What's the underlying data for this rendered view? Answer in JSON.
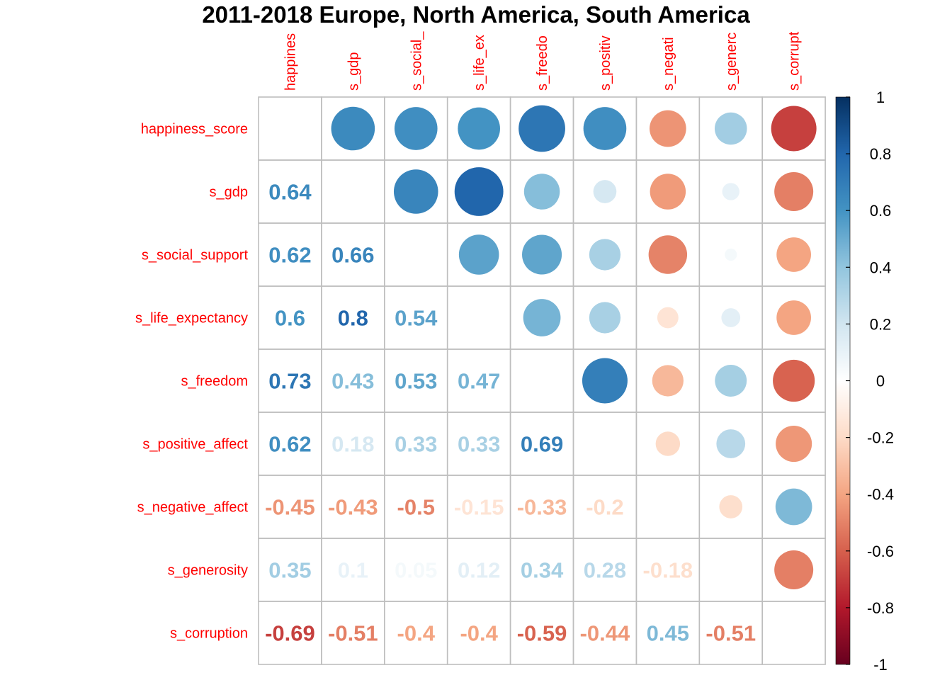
{
  "chart_data": {
    "type": "heatmap",
    "title": "2011-2018 Europe, North America, South America",
    "column_labels": [
      "happiness_score",
      "s_gdp",
      "s_social_support",
      "s_life_expectancy",
      "s_freedom",
      "s_positive_affect",
      "s_negative_affect",
      "s_generosity",
      "s_corruption"
    ],
    "row_labels": [
      "happiness_score",
      "s_gdp",
      "s_social_support",
      "s_life_expectancy",
      "s_freedom",
      "s_positive_affect",
      "s_negative_affect",
      "s_generosity",
      "s_corruption"
    ],
    "column_labels_shown": [
      "happines",
      "s_gdp",
      "s_social_",
      "s_life_ex",
      "s_freedo",
      "s_positiv",
      "s_negati",
      "s_generc",
      "s_corrupt"
    ],
    "matrix": [
      [
        1,
        0.64,
        0.62,
        0.6,
        0.73,
        0.62,
        -0.45,
        0.35,
        -0.69
      ],
      [
        0.64,
        1,
        0.66,
        0.8,
        0.43,
        0.18,
        -0.43,
        0.1,
        -0.51
      ],
      [
        0.62,
        0.66,
        1,
        0.54,
        0.53,
        0.33,
        -0.5,
        0.05,
        -0.4
      ],
      [
        0.6,
        0.8,
        0.54,
        1,
        0.47,
        0.33,
        -0.15,
        0.12,
        -0.4
      ],
      [
        0.73,
        0.43,
        0.53,
        0.47,
        1,
        0.69,
        -0.33,
        0.34,
        -0.59
      ],
      [
        0.62,
        0.18,
        0.33,
        0.33,
        0.69,
        1,
        -0.2,
        0.28,
        -0.44
      ],
      [
        -0.45,
        -0.43,
        -0.5,
        -0.15,
        -0.33,
        -0.2,
        1,
        -0.18,
        0.45
      ],
      [
        0.35,
        0.1,
        0.05,
        0.12,
        0.34,
        0.28,
        -0.18,
        1,
        -0.51
      ],
      [
        -0.69,
        -0.51,
        -0.4,
        -0.4,
        -0.59,
        -0.44,
        0.45,
        -0.51,
        1
      ]
    ],
    "lower_triangle": "numbers",
    "upper_triangle": "circles",
    "diagonal": "blank",
    "colorbar": {
      "range": [
        -1,
        1
      ],
      "ticks": [
        "1",
        "0.8",
        "0.6",
        "0.4",
        "0.2",
        "0",
        "-0.2",
        "-0.4",
        "-0.6",
        "-0.8",
        "-1"
      ],
      "colors": [
        "#67001F",
        "#B2182B",
        "#D6604D",
        "#F4A582",
        "#FDDBC7",
        "#FFFFFF",
        "#D1E5F0",
        "#92C5DE",
        "#4393C3",
        "#2166AC",
        "#053061"
      ]
    },
    "label_color": "#FF0000",
    "grid_color": "#BEBEBE"
  }
}
